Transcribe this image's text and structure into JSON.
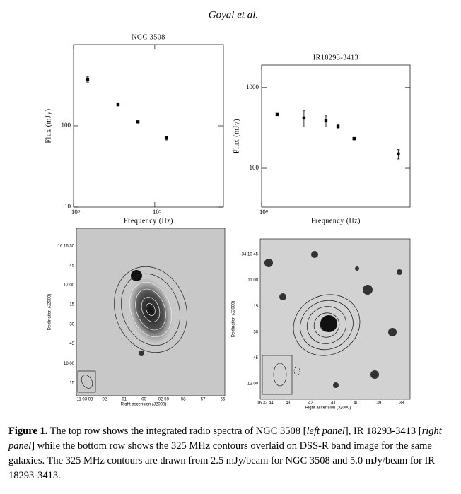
{
  "header": {
    "author": "Goyal et al."
  },
  "chart_data": [
    {
      "type": "scatter",
      "title": "NGC 3508",
      "x_label": "Frequency (Hz)",
      "y_label": "Flux (mJy)",
      "xscale": "log",
      "yscale": "log",
      "xlim": [
        100000000,
        7000000000
      ],
      "ylim": [
        10,
        1000
      ],
      "xticks": [
        {
          "value": 100000000,
          "label": "10⁸"
        },
        {
          "value": 1000000000,
          "label": "10⁹"
        }
      ],
      "yticks": [
        10,
        100
      ],
      "color": "#000000",
      "series": [
        {
          "x": [
            149000000,
            353000000,
            620000000,
            1400000000
          ],
          "values": [
            375,
            182,
            112,
            71
          ],
          "errors": [
            30,
            5,
            3,
            4
          ]
        }
      ]
    },
    {
      "type": "scatter",
      "title": "IR18293-3413",
      "x_label": "Frequency (Hz)",
      "y_label": "Flux (mJy)",
      "xscale": "log",
      "yscale": "log",
      "xlim": [
        100000000,
        7000000000
      ],
      "ylim": [
        33,
        1900
      ],
      "xticks": [
        {
          "value": 100000000,
          "label": "10⁸"
        }
      ],
      "yticks": [
        100,
        1000
      ],
      "color": "#000000",
      "series": [
        {
          "x": [
            156000000,
            336000000,
            630000000,
            890000000,
            1410000000,
            5000000000
          ],
          "values": [
            464,
            420,
            387,
            330,
            233,
            150
          ],
          "errors": [
            10,
            95,
            60,
            15,
            8,
            20
          ]
        }
      ]
    }
  ],
  "images": [
    {
      "y_label": "Declination (J2000)",
      "x_label": "Right ascension (J2000)",
      "yticks": [
        "-16 16 30",
        "45",
        "17 00",
        "15",
        "30",
        "45",
        "18 00",
        "15"
      ],
      "xticks": [
        "11 03 03",
        "02",
        "01",
        "00",
        "02 59",
        "58",
        "57",
        "56"
      ]
    },
    {
      "y_label": "Declination (J2000)",
      "x_label": "Right ascension (J2000)",
      "yticks": [
        "-34 10 45",
        "11 00",
        "15",
        "30",
        "45",
        "12 00"
      ],
      "xticks": [
        "16 32 44",
        "43",
        "42",
        "41",
        "40",
        "39",
        "38"
      ]
    }
  ],
  "caption": {
    "label": "Figure 1.",
    "segments": [
      " The top row shows the integrated radio spectra of NGC 3508 [",
      "left panel",
      "], IR 18293-3413 [",
      "right panel",
      "] while the bottom row shows the 325 MHz contours overlaid on DSS-R band image for the same galaxies.  The 325 MHz contours are drawn from 2.5 mJy/beam for NGC 3508 and 5.0 mJy/beam for IR 18293-3413."
    ]
  }
}
